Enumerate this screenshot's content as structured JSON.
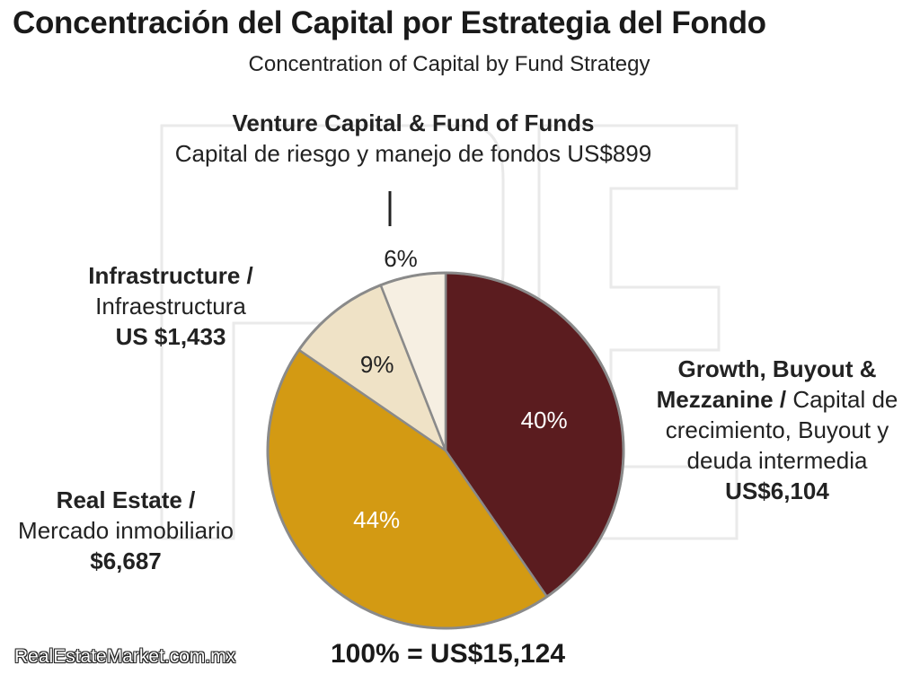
{
  "title": "Concentración del Capital por Estrategia del Fondo",
  "subtitle": "Concentration of Capital by Fund Strategy",
  "total_label": "100% = US$15,124",
  "source": "RealEstateMarket.com.mx",
  "labels": {
    "vc_en": "Venture Capital & Fund of Funds",
    "vc_es": "Capital de riesgo y manejo de fondos US$899",
    "infra_en": "Infrastructure /",
    "infra_es": "Infraestructura",
    "infra_val": "US $1,433",
    "growth_en": "Growth, Buyout & Mezzanine /",
    "growth_es": "Capital de crecimiento, Buyout y deuda intermedia",
    "growth_val": "US$6,104",
    "re_en": "Real Estate /",
    "re_es": "Mercado inmobiliario",
    "re_val": "$6,687"
  },
  "chart_data": {
    "type": "pie",
    "title": "Concentración del Capital por Estrategia del Fondo",
    "subtitle": "Concentration of Capital by Fund Strategy",
    "start": "12 o'clock, clockwise",
    "slices": [
      {
        "label": "Growth, Buyout & Mezzanine",
        "value": 6104,
        "percent_label": "40%",
        "color": "#5b1c1f",
        "text_color": "#ffffff"
      },
      {
        "label": "Real Estate",
        "value": 6687,
        "percent_label": "44%",
        "color": "#d39a13",
        "text_color": "#ffffff"
      },
      {
        "label": "Infrastructure",
        "value": 1433,
        "percent_label": "9%",
        "color": "#efe2c6",
        "text_color": "#222222"
      },
      {
        "label": "Venture Capital & Fund of Funds",
        "value": 899,
        "percent_label": "6%",
        "color": "#f6efe2",
        "text_color": "#222222"
      }
    ],
    "total": 15124
  }
}
